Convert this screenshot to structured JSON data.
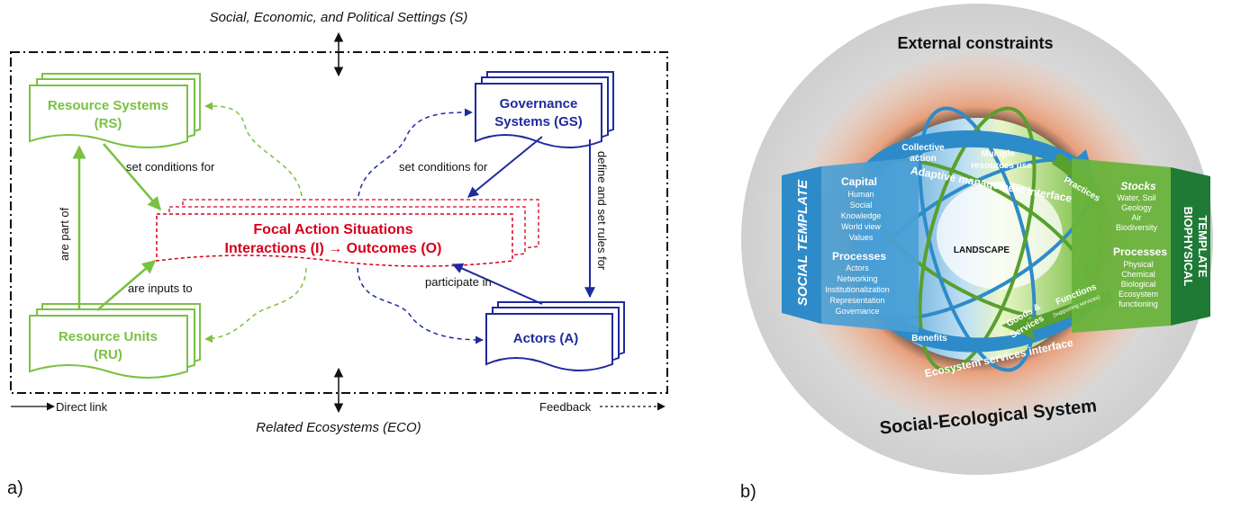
{
  "diagram_a": {
    "top_label": "Social, Economic, and Political Settings (S)",
    "bottom_label": "Related Ecosystems (ECO)",
    "rs": {
      "line1": "Resource Systems",
      "line2": "(RS)"
    },
    "ru": {
      "line1": "Resource Units",
      "line2": "(RU)"
    },
    "gs": {
      "line1": "Governance",
      "line2": "Systems (GS)"
    },
    "actors": "Actors (A)",
    "focal": {
      "line1": "Focal Action Situations",
      "line2": "Interactions (I) → Outcomes (O)"
    },
    "edges": {
      "rs_focal": "set conditions for",
      "gs_focal": "set conditions for",
      "ru_rs": "are part of",
      "ru_focal": "are inputs to",
      "gs_actors": "define and set rules for",
      "actors_focal": "participate in"
    },
    "legend": {
      "direct": "Direct link",
      "feedback": "Feedback"
    },
    "panel_label": "a)",
    "colors": {
      "green": "#7ac143",
      "blue": "#1f2a9c",
      "red": "#d6001c"
    }
  },
  "diagram_b": {
    "outer_top": "External constraints",
    "outer_bottom": "Social-Ecological System",
    "center": "LANDSCAPE",
    "social_template": "SOCIAL TEMPLATE",
    "biophysical_template": {
      "line1": "BIOPHYSICAL",
      "line2": "TEMPLATE"
    },
    "social_capital": {
      "title": "Capital",
      "items": [
        "Human",
        "Social",
        "Knowledge",
        "World view",
        "Values"
      ]
    },
    "social_processes": {
      "title": "Processes",
      "items": [
        "Actors",
        "Networking",
        "Institutionalization",
        "Representation",
        "Governance"
      ]
    },
    "bio_stocks": {
      "title": "Stocks",
      "items": [
        "Water, Soil",
        "Geology",
        "Air",
        "Biodiversity"
      ]
    },
    "bio_processes": {
      "title": "Processes",
      "items": [
        "Physical",
        "Chemical",
        "Biological",
        "Ecosystem",
        "functioning"
      ]
    },
    "collective": {
      "line1": "Collective",
      "line2": "action"
    },
    "multiple": {
      "line1": "Multiple",
      "line2": "resources use"
    },
    "practices": "Practices",
    "adaptive": "Adaptive management interface",
    "functions": "Functions",
    "functions_sub": "(supporting services)",
    "goods": {
      "line1": "Goods &",
      "line2": "Services"
    },
    "benefits": "Benefits",
    "ess_interface": "Ecosystem services interface",
    "panel_label": "b)",
    "colors": {
      "blue": "#2e8bc9",
      "green": "#58a02f",
      "dark_green": "#1f7a35",
      "orange": "#e3926a"
    }
  }
}
